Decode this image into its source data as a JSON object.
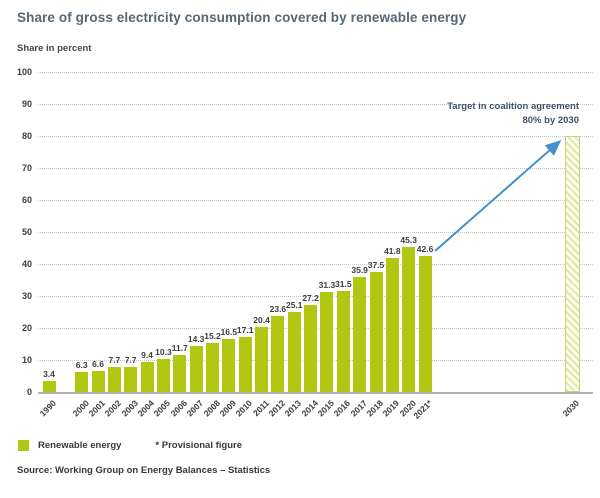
{
  "chart_data": {
    "type": "bar",
    "title": "Share of gross electricity consumption covered by renewable energy",
    "ylabel": "Share in percent",
    "xlabel": "",
    "ylim": [
      0,
      100
    ],
    "ytick_step": 10,
    "grid": "horizontal-dotted",
    "categories": [
      "1990",
      "2000",
      "2001",
      "2002",
      "2003",
      "2004",
      "2005",
      "2006",
      "2007",
      "2008",
      "2009",
      "2010",
      "2011",
      "2012",
      "2013",
      "2014",
      "2015",
      "2016",
      "2017",
      "2018",
      "2019",
      "2020",
      "2021*"
    ],
    "values": [
      3.4,
      6.3,
      6.6,
      7.7,
      7.7,
      9.4,
      10.3,
      11.7,
      14.3,
      15.2,
      16.5,
      17.1,
      20.4,
      23.6,
      25.1,
      27.2,
      31.3,
      31.5,
      35.9,
      37.5,
      41.8,
      45.3,
      42.6
    ],
    "series_name": "Renewable energy",
    "target": {
      "category": "2030",
      "value": 80,
      "style": "hatched-outline",
      "annotation_line1": "Target in coalition agreement",
      "annotation_line2": "80% by 2030"
    },
    "legend": [
      {
        "label": "Renewable energy",
        "swatch_color": "#b2c712"
      }
    ],
    "footnote": "* Provisional figure",
    "source": "Source: Working Group on Energy Balances – Statistics",
    "colors": {
      "bar": "#b2c712",
      "target_hatch": "#e2e69c",
      "target_border": "#ccd276",
      "arrow": "#4590c8",
      "title_text": "#53687a",
      "annotation_text": "#3e5266",
      "grid": "#c6c6c6",
      "axis": "#b2b2b2"
    }
  }
}
